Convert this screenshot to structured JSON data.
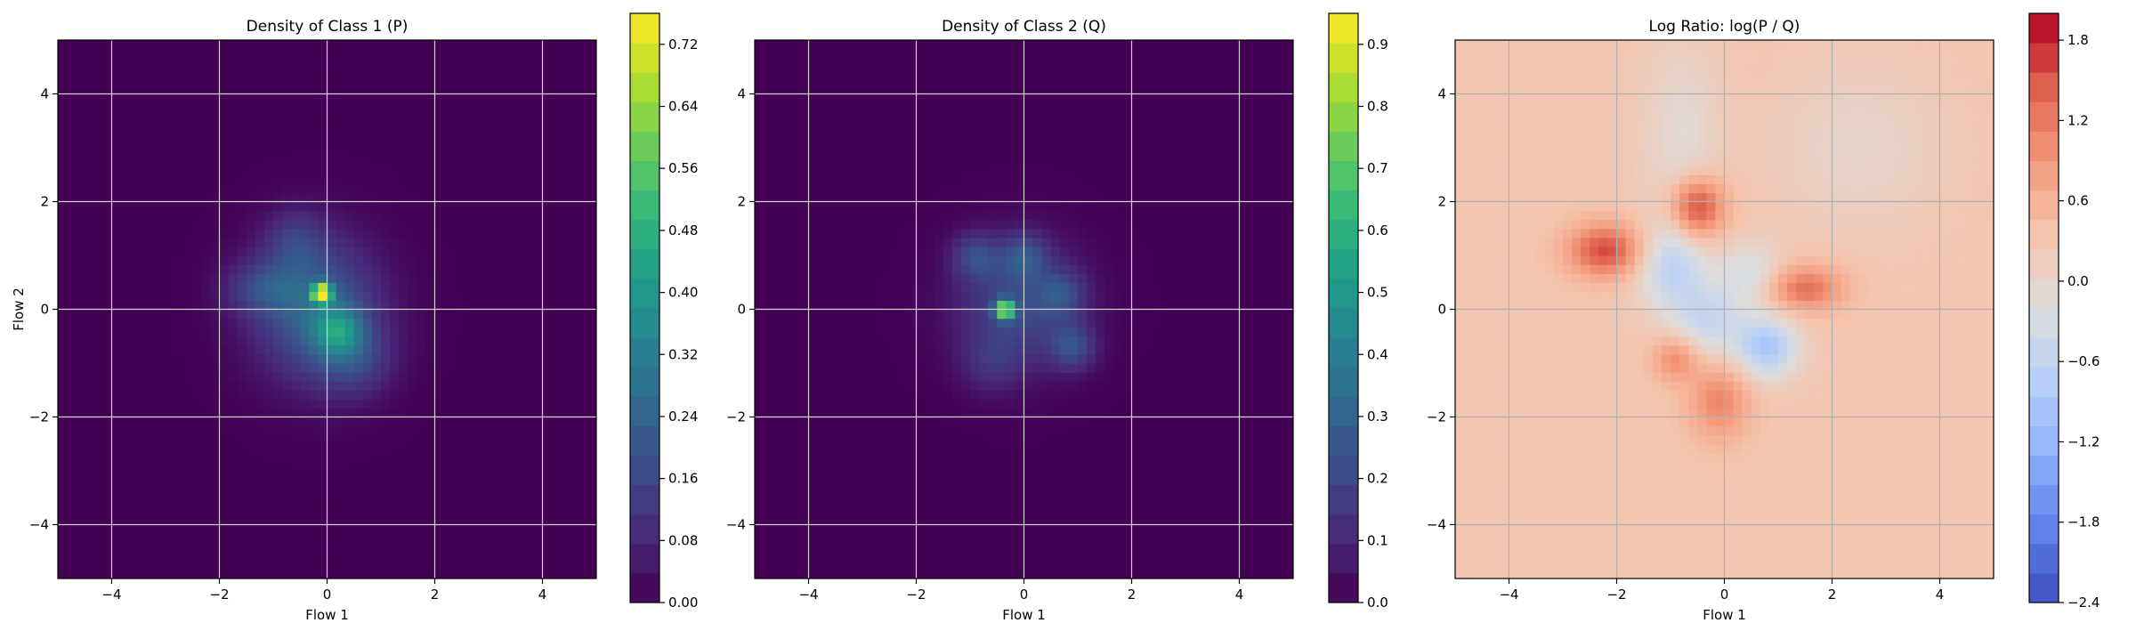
{
  "chart_data": [
    {
      "type": "heatmap",
      "title": "Density of Class 1 (P)",
      "xlabel": "Flow 1",
      "ylabel": "Flow 2",
      "xlim": [
        -5,
        5
      ],
      "ylim": [
        -5,
        5
      ],
      "xticks": [
        -4,
        -2,
        0,
        2,
        4
      ],
      "yticks": [
        -4,
        -2,
        0,
        2,
        4
      ],
      "grid": true,
      "colormap": "viridis",
      "colorbar": {
        "min": 0.0,
        "max": 0.76,
        "tick_values": [
          0.0,
          0.08,
          0.16,
          0.24,
          0.32,
          0.4,
          0.48,
          0.56,
          0.64,
          0.72
        ],
        "tick_labels": [
          "0.00",
          "0.08",
          "0.16",
          "0.24",
          "0.32",
          "0.40",
          "0.48",
          "0.56",
          "0.64",
          "0.72"
        ]
      },
      "blobs": [
        {
          "x": -0.1,
          "y": 0.3,
          "peak": 0.7,
          "sx": 0.12,
          "sy": 0.12
        },
        {
          "x": -0.2,
          "y": 0.0,
          "peak": 0.25,
          "sx": 0.8,
          "sy": 0.9
        },
        {
          "x": -1.2,
          "y": 0.4,
          "peak": 0.12,
          "sx": 0.5,
          "sy": 0.35
        },
        {
          "x": 0.5,
          "y": -0.9,
          "peak": 0.12,
          "sx": 0.5,
          "sy": 0.5
        },
        {
          "x": 0.2,
          "y": -0.4,
          "peak": 0.22,
          "sx": 0.3,
          "sy": 0.3
        },
        {
          "x": -0.6,
          "y": 1.3,
          "peak": 0.1,
          "sx": 0.4,
          "sy": 0.4
        }
      ]
    },
    {
      "type": "heatmap",
      "title": "Density of Class 2 (Q)",
      "xlabel": "Flow 1",
      "ylabel": "",
      "xlim": [
        -5,
        5
      ],
      "ylim": [
        -5,
        5
      ],
      "xticks": [
        -4,
        -2,
        0,
        2,
        4
      ],
      "yticks": [
        -4,
        -2,
        0,
        2,
        4
      ],
      "grid": true,
      "colormap": "viridis",
      "colorbar": {
        "min": 0.0,
        "max": 0.95,
        "tick_values": [
          0.0,
          0.1,
          0.2,
          0.3,
          0.4,
          0.5,
          0.6,
          0.7,
          0.8,
          0.9
        ],
        "tick_labels": [
          "0.0",
          "0.1",
          "0.2",
          "0.3",
          "0.4",
          "0.5",
          "0.6",
          "0.7",
          "0.8",
          "0.9"
        ]
      },
      "blobs": [
        {
          "x": -0.35,
          "y": 0.0,
          "peak": 0.75,
          "sx": 0.12,
          "sy": 0.12
        },
        {
          "x": -0.1,
          "y": 0.1,
          "peak": 0.22,
          "sx": 0.8,
          "sy": 0.8
        },
        {
          "x": -0.9,
          "y": 1.0,
          "peak": 0.18,
          "sx": 0.3,
          "sy": 0.3
        },
        {
          "x": 0.0,
          "y": 1.0,
          "peak": 0.18,
          "sx": 0.3,
          "sy": 0.3
        },
        {
          "x": 0.9,
          "y": -0.7,
          "peak": 0.2,
          "sx": 0.3,
          "sy": 0.3
        },
        {
          "x": 0.7,
          "y": 0.3,
          "peak": 0.15,
          "sx": 0.3,
          "sy": 0.3
        },
        {
          "x": -0.6,
          "y": -1.0,
          "peak": 0.1,
          "sx": 0.4,
          "sy": 0.4
        }
      ]
    },
    {
      "type": "heatmap",
      "title": "Log Ratio: log(P / Q)",
      "xlabel": "Flow 1",
      "ylabel": "",
      "xlim": [
        -5,
        5
      ],
      "ylim": [
        -5,
        5
      ],
      "xticks": [
        -4,
        -2,
        0,
        2,
        4
      ],
      "yticks": [
        -4,
        -2,
        0,
        2,
        4
      ],
      "grid": true,
      "colormap": "coolwarm",
      "colorbar": {
        "min": -2.4,
        "max": 2.0,
        "tick_values": [
          -2.4,
          -1.8,
          -1.2,
          -0.6,
          0.0,
          0.6,
          1.2,
          1.8
        ],
        "tick_labels": [
          "−2.4",
          "−1.8",
          "−1.2",
          "−0.6",
          "0.0",
          "0.6",
          "1.2",
          "1.8"
        ]
      },
      "background": 0.3,
      "blobs": [
        {
          "x": -2.2,
          "y": 1.1,
          "peak": 1.3,
          "sx": 0.5,
          "sy": 0.35
        },
        {
          "x": -0.5,
          "y": 1.9,
          "peak": 1.4,
          "sx": 0.35,
          "sy": 0.4
        },
        {
          "x": 1.5,
          "y": 0.4,
          "peak": 1.0,
          "sx": 0.5,
          "sy": 0.3
        },
        {
          "x": -0.1,
          "y": -1.7,
          "peak": 0.8,
          "sx": 0.4,
          "sy": 0.5
        },
        {
          "x": -0.9,
          "y": -0.9,
          "peak": 0.8,
          "sx": 0.3,
          "sy": 0.3
        },
        {
          "x": -1.0,
          "y": 0.8,
          "peak": -0.9,
          "sx": 0.45,
          "sy": 0.55
        },
        {
          "x": 0.8,
          "y": -0.7,
          "peak": -1.2,
          "sx": 0.4,
          "sy": 0.4
        },
        {
          "x": -0.3,
          "y": -0.2,
          "peak": -0.8,
          "sx": 0.5,
          "sy": 0.5
        },
        {
          "x": 0.5,
          "y": 0.7,
          "peak": -0.6,
          "sx": 0.4,
          "sy": 0.4
        },
        {
          "x": -0.8,
          "y": 3.2,
          "peak": -0.4,
          "sx": 0.5,
          "sy": 1.2
        },
        {
          "x": 2.5,
          "y": 3.0,
          "peak": -0.3,
          "sx": 1.0,
          "sy": 1.0
        }
      ]
    }
  ]
}
